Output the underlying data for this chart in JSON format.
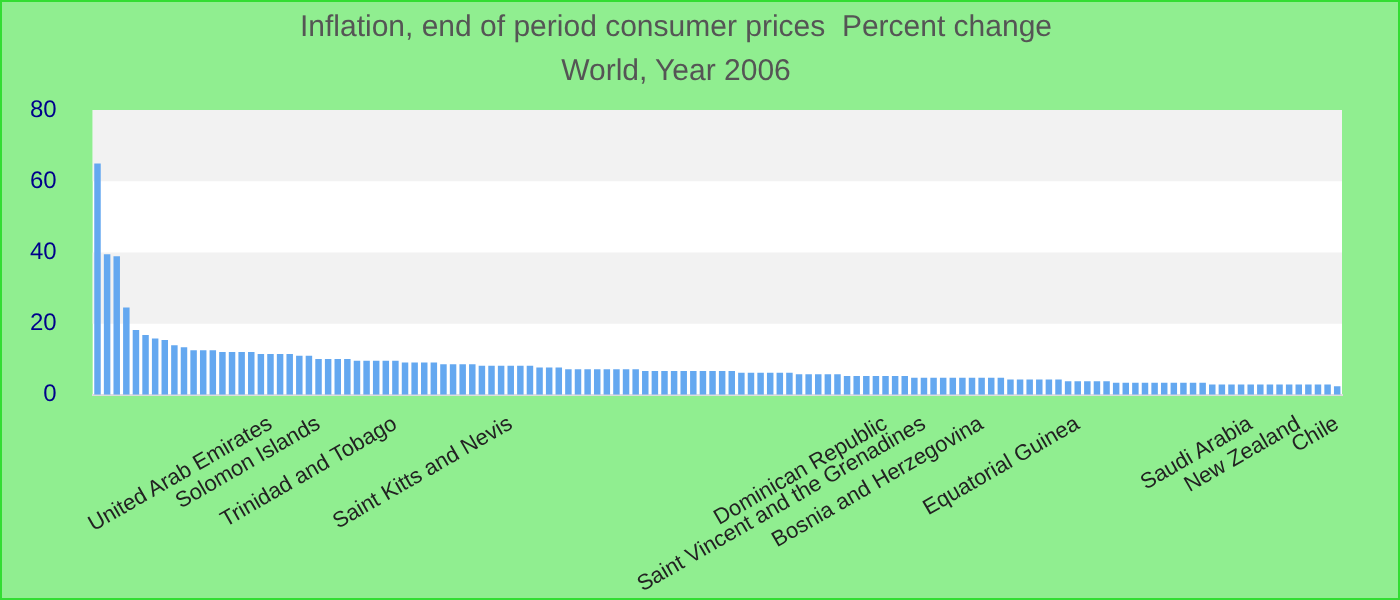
{
  "chart_data": {
    "type": "bar",
    "title": "Inflation, end of period consumer prices  Percent change",
    "subtitle": "World, Year 2006",
    "categories": [
      null,
      null,
      null,
      null,
      null,
      null,
      null,
      null,
      null,
      null,
      null,
      null,
      null,
      null,
      null,
      null,
      null,
      null,
      "United Arab Emirates",
      null,
      null,
      null,
      null,
      "Solomon Islands",
      null,
      null,
      null,
      null,
      null,
      null,
      null,
      "Trinidad and Tobago",
      null,
      null,
      null,
      null,
      null,
      null,
      null,
      null,
      null,
      null,
      null,
      "Saint Kitts and Nevis",
      null,
      null,
      null,
      null,
      null,
      null,
      null,
      null,
      null,
      null,
      null,
      null,
      null,
      null,
      null,
      null,
      null,
      null,
      null,
      null,
      null,
      null,
      null,
      null,
      null,
      null,
      null,
      null,
      null,
      null,
      null,
      null,
      null,
      null,
      null,
      null,
      null,
      null,
      "Dominican Republic",
      null,
      null,
      null,
      "Saint Vincent and the Grenadines",
      null,
      null,
      null,
      null,
      null,
      "Bosnia and Herzegovina",
      null,
      null,
      null,
      null,
      null,
      null,
      null,
      null,
      null,
      "Equatorial Guinea",
      null,
      null,
      null,
      null,
      null,
      null,
      null,
      null,
      null,
      null,
      null,
      null,
      null,
      null,
      null,
      null,
      null,
      "Saudi Arabia",
      null,
      null,
      null,
      null,
      "New Zealand",
      null,
      null,
      null,
      "Chile"
    ],
    "values": [
      65,
      39.5,
      38.9,
      24.5,
      18.2,
      16.8,
      15.8,
      15.4,
      13.9,
      13.4,
      12.5,
      12.5,
      12.5,
      12,
      12,
      12,
      12,
      11.5,
      11.5,
      11.5,
      11.5,
      11,
      11,
      10.1,
      10.1,
      10.1,
      10.1,
      9.6,
      9.6,
      9.6,
      9.6,
      9.6,
      9.1,
      9.1,
      9.1,
      9.1,
      8.6,
      8.6,
      8.6,
      8.6,
      8.2,
      8.2,
      8.2,
      8.2,
      8.2,
      8.2,
      7.7,
      7.7,
      7.7,
      7.2,
      7.2,
      7.2,
      7.2,
      7.2,
      7.2,
      7.2,
      7.2,
      6.7,
      6.7,
      6.7,
      6.7,
      6.7,
      6.7,
      6.7,
      6.7,
      6.7,
      6.7,
      6.2,
      6.2,
      6.2,
      6.2,
      6.2,
      6.2,
      5.8,
      5.8,
      5.8,
      5.8,
      5.8,
      5.3,
      5.3,
      5.3,
      5.3,
      5.3,
      5.3,
      5.3,
      4.8,
      4.8,
      4.8,
      4.8,
      4.8,
      4.8,
      4.8,
      4.8,
      4.8,
      4.8,
      4.3,
      4.3,
      4.3,
      4.3,
      4.3,
      4.3,
      3.8,
      3.8,
      3.8,
      3.8,
      3.8,
      3.4,
      3.4,
      3.4,
      3.4,
      3.4,
      3.4,
      3.4,
      3.4,
      3.4,
      3.4,
      2.9,
      2.9,
      2.9,
      2.9,
      2.9,
      2.9,
      2.9,
      2.9,
      2.9,
      2.9,
      2.9,
      2.9,
      2.9,
      2.4
    ],
    "color": "#64a8f0",
    "ylim": [
      0,
      80
    ],
    "yticks": [
      0,
      20,
      40,
      60,
      80
    ]
  }
}
